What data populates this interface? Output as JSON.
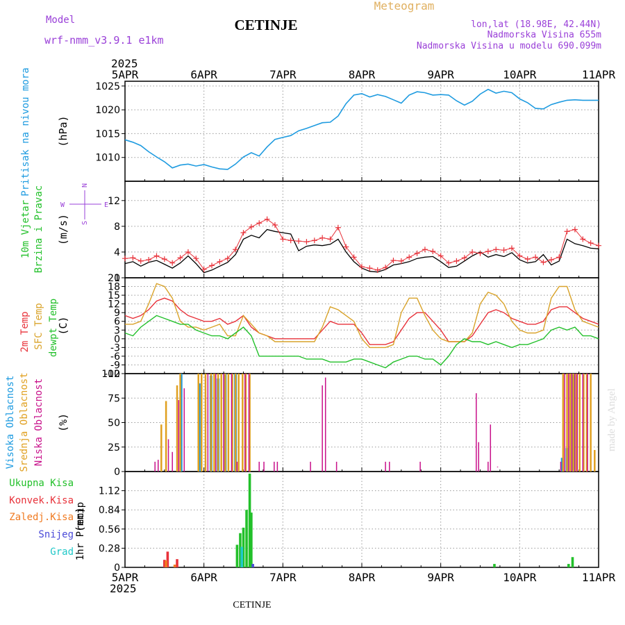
{
  "header": {
    "model_label": "Model",
    "model_name": "wrf-nmm_v3.9.1 e1km",
    "station": "CETINJE",
    "product": "Meteogram",
    "coords": "lon,lat (18.98E, 42.44N)",
    "elevation": "Nadmorska Visina 655m",
    "model_elevation": "Nadmorska Visina u modelu 690.099m",
    "year": "2025",
    "footer_station": "CETINJE",
    "credit": "made by Angel"
  },
  "colors": {
    "pressure": "#1e9be0",
    "temp2m": "#e8323a",
    "sfc": "#d9a32a",
    "dewpt": "#22c02a",
    "high_cloud": "#1e9be0",
    "mid_cloud": "#e0a020",
    "low_cloud": "#c8108a",
    "total_precip": "#22c02a",
    "conv_precip": "#e8323a",
    "frozen": "#f07a20",
    "snow": "#4a4ad8",
    "graupel": "#20c8c8",
    "wind_speed": "#000000",
    "wind_gust": "#e8323a",
    "violet": "#9a40d8",
    "meteogram": "#e0b060"
  },
  "chart_data": [
    {
      "type": "line",
      "name": "pressure",
      "ylabel": "Pritisak na nivou mora",
      "unit": "(hPa)",
      "ylim": [
        1005,
        1026
      ],
      "yticks": [
        1010,
        1015,
        1020,
        1025
      ],
      "x_days": [
        0,
        0.1,
        0.2,
        0.3,
        0.4,
        0.5,
        0.6,
        0.7,
        0.8,
        0.9,
        1.0,
        1.1,
        1.2,
        1.3,
        1.4,
        1.5,
        1.6,
        1.7,
        1.8,
        1.9,
        2.0,
        2.1,
        2.2,
        2.3,
        2.4,
        2.5,
        2.6,
        2.7,
        2.8,
        2.9,
        3.0,
        3.1,
        3.2,
        3.3,
        3.4,
        3.5,
        3.6,
        3.7,
        3.8,
        3.9,
        4.0,
        4.1,
        4.2,
        4.3,
        4.4,
        4.5,
        4.6,
        4.7,
        4.8,
        4.9,
        5.0,
        5.1,
        5.2,
        5.3,
        5.4,
        5.5,
        5.6,
        5.7,
        5.8,
        5.9,
        6.0
      ],
      "values": [
        1013.7,
        1013.2,
        1012.5,
        1011.2,
        1010.1,
        1009.1,
        1007.8,
        1008.4,
        1008.6,
        1008.2,
        1008.5,
        1008.0,
        1007.6,
        1007.5,
        1008.6,
        1010.1,
        1011.0,
        1010.3,
        1012.2,
        1013.8,
        1014.2,
        1014.6,
        1015.6,
        1016.1,
        1016.7,
        1017.3,
        1017.4,
        1018.7,
        1021.3,
        1023.1,
        1023.4,
        1022.7,
        1023.2,
        1022.8,
        1022.1,
        1021.4,
        1023.1,
        1023.8,
        1023.6,
        1023.1,
        1023.2,
        1023.1,
        1021.9,
        1021.0,
        1021.8,
        1023.3,
        1024.3,
        1023.5,
        1023.9,
        1023.6,
        1022.3,
        1021.5,
        1020.3,
        1020.2,
        1021.1,
        1021.6,
        1022.0,
        1022.1,
        1022.0,
        1022.0,
        1022.0
      ]
    },
    {
      "type": "line",
      "name": "wind",
      "ylabel": "10m Vjetar",
      "ylabel2": "Brzina i Pravac",
      "unit": "(m/s)",
      "ylim": [
        0,
        15
      ],
      "yticks": [
        0,
        4,
        8,
        12
      ],
      "compass": {
        "n": "N",
        "e": "E",
        "w": "W",
        "s": "S"
      },
      "x_days": [
        0,
        0.1,
        0.2,
        0.3,
        0.4,
        0.5,
        0.6,
        0.7,
        0.8,
        0.9,
        1.0,
        1.1,
        1.2,
        1.3,
        1.4,
        1.5,
        1.6,
        1.7,
        1.8,
        1.9,
        2.0,
        2.1,
        2.2,
        2.3,
        2.4,
        2.5,
        2.6,
        2.7,
        2.8,
        2.9,
        3.0,
        3.1,
        3.2,
        3.3,
        3.4,
        3.5,
        3.6,
        3.7,
        3.8,
        3.9,
        4.0,
        4.1,
        4.2,
        4.3,
        4.4,
        4.5,
        4.6,
        4.7,
        4.8,
        4.9,
        5.0,
        5.1,
        5.2,
        5.3,
        5.4,
        5.5,
        5.6,
        5.7,
        5.8,
        5.9,
        6.0
      ],
      "series": [
        {
          "name": "speed",
          "values": [
            2.2,
            2.5,
            1.8,
            2.4,
            2.7,
            2.1,
            1.5,
            2.3,
            3.4,
            2.2,
            0.8,
            1.2,
            1.8,
            2.4,
            3.6,
            6.0,
            6.6,
            6.2,
            7.5,
            7.2,
            7.0,
            6.8,
            4.2,
            4.9,
            5.1,
            5.0,
            5.2,
            6.0,
            4.0,
            2.5,
            1.5,
            1.0,
            0.9,
            1.3,
            2.0,
            2.2,
            2.5,
            3.0,
            3.2,
            3.3,
            2.5,
            1.6,
            1.8,
            2.6,
            3.4,
            4.0,
            3.2,
            3.6,
            3.3,
            3.9,
            2.8,
            2.3,
            2.5,
            3.6,
            2.0,
            2.6,
            6.0,
            5.3,
            5.0,
            4.6,
            4.5
          ]
        },
        {
          "name": "gust",
          "values": [
            3.0,
            3.1,
            2.6,
            2.8,
            3.4,
            2.9,
            2.3,
            3.1,
            4.0,
            3.0,
            1.3,
            1.9,
            2.5,
            3.0,
            4.4,
            7.0,
            7.9,
            8.5,
            9.1,
            8.2,
            6.0,
            5.8,
            5.7,
            5.6,
            5.8,
            6.2,
            6.0,
            7.8,
            4.8,
            3.2,
            1.7,
            1.5,
            1.2,
            1.6,
            2.7,
            2.6,
            3.2,
            3.8,
            4.4,
            4.1,
            3.4,
            2.3,
            2.6,
            3.1,
            4.0,
            3.8,
            4.1,
            4.4,
            4.3,
            4.6,
            3.4,
            2.9,
            3.2,
            2.4,
            2.8,
            3.2,
            7.2,
            7.5,
            6.0,
            5.4,
            5.0
          ]
        }
      ]
    },
    {
      "type": "line",
      "name": "temperature",
      "ylabel": "2m Temp",
      "ylabel2": "SFC Temp",
      "ylabel3": "dewpt Temp",
      "unit": "(C)",
      "ylim": [
        -12,
        21
      ],
      "yticks": [
        -12,
        -9,
        -6,
        -3,
        0,
        3,
        6,
        9,
        12,
        15,
        18,
        21
      ],
      "x_days": [
        0,
        0.1,
        0.2,
        0.3,
        0.4,
        0.5,
        0.6,
        0.7,
        0.8,
        0.9,
        1.0,
        1.1,
        1.2,
        1.3,
        1.4,
        1.5,
        1.6,
        1.7,
        1.8,
        1.9,
        2.0,
        2.1,
        2.2,
        2.3,
        2.4,
        2.5,
        2.6,
        2.7,
        2.8,
        2.9,
        3.0,
        3.1,
        3.2,
        3.3,
        3.4,
        3.5,
        3.6,
        3.7,
        3.8,
        3.9,
        4.0,
        4.1,
        4.2,
        4.3,
        4.4,
        4.5,
        4.6,
        4.7,
        4.8,
        4.9,
        5.0,
        5.1,
        5.2,
        5.3,
        5.4,
        5.5,
        5.6,
        5.7,
        5.8,
        5.9,
        6.0
      ],
      "series": [
        {
          "name": "2m Temp",
          "values": [
            8,
            7,
            8,
            10,
            13,
            14,
            13,
            10,
            8,
            7,
            6,
            6,
            7,
            5,
            6,
            8,
            4,
            2,
            1,
            0,
            0,
            0,
            0,
            0,
            0,
            3,
            6,
            5,
            5,
            5,
            2,
            -2,
            -2,
            -2,
            -1,
            3,
            7,
            9,
            9,
            6,
            3,
            -1,
            -1,
            -1,
            1,
            5,
            9,
            10,
            9,
            7,
            6,
            5,
            5,
            6,
            10,
            11,
            11,
            9,
            7,
            6,
            5
          ]
        },
        {
          "name": "SFC Temp",
          "values": [
            5,
            5,
            6,
            12,
            19,
            18,
            14,
            6,
            4,
            4,
            3,
            4,
            5,
            1,
            1,
            8,
            5,
            2,
            1,
            -1,
            -1,
            -1,
            -1,
            -1,
            -1,
            4,
            11,
            10,
            8,
            6,
            0,
            -3,
            -3,
            -3,
            -2,
            9,
            14,
            14,
            8,
            3,
            0,
            -1,
            -1,
            -1,
            2,
            12,
            16,
            15,
            12,
            6,
            3,
            2,
            2,
            3,
            14,
            18,
            18,
            10,
            6,
            5,
            4
          ]
        },
        {
          "name": "dewpt Temp",
          "values": [
            2,
            1,
            4,
            6,
            8,
            7,
            6,
            5,
            5,
            3,
            2,
            1,
            1,
            0,
            2,
            4,
            1,
            -6,
            -6,
            -6,
            -6,
            -6,
            -6,
            -7,
            -7,
            -7,
            -8,
            -8,
            -8,
            -7,
            -7,
            -8,
            -9,
            -10,
            -8,
            -7,
            -6,
            -6,
            -7,
            -7,
            -9,
            -6,
            -2,
            0,
            -1,
            -1,
            -2,
            -1,
            -2,
            -3,
            -2,
            -2,
            -1,
            0,
            3,
            4,
            3,
            4,
            1,
            1,
            0
          ]
        }
      ]
    },
    {
      "type": "bar",
      "name": "cloud",
      "ylabel": "Visoka Oblacnost",
      "ylabel2": "Srednja Oblacnost",
      "ylabel3": "Niska Oblacnost",
      "unit": "(%)",
      "ylim": [
        0,
        100
      ],
      "yticks": [
        0,
        25,
        50,
        75,
        100
      ],
      "series": [
        {
          "name": "Visoka Oblacnost",
          "x_days": [
            0.71,
            0.94,
            1.09,
            1.18,
            1.27,
            1.4,
            5.54,
            5.6,
            5.68
          ],
          "values": [
            100,
            90,
            98,
            95,
            100,
            100,
            14,
            24,
            100
          ]
        },
        {
          "name": "Srednja Oblacnost",
          "x_days": [
            0.46,
            0.52,
            0.66,
            0.7,
            0.93,
            0.97,
            1.02,
            1.09,
            1.13,
            1.18,
            1.22,
            1.27,
            1.31,
            1.36,
            1.4,
            1.44,
            1.49,
            1.53,
            1.58,
            5.55,
            5.6,
            5.64,
            5.68,
            5.72,
            5.76,
            5.81,
            5.85,
            5.9,
            5.95
          ],
          "values": [
            48,
            72,
            88,
            100,
            100,
            100,
            100,
            100,
            100,
            100,
            100,
            100,
            100,
            100,
            100,
            100,
            100,
            100,
            100,
            100,
            100,
            100,
            100,
            100,
            100,
            100,
            100,
            100,
            22
          ]
        },
        {
          "name": "Niska Oblacnost",
          "x_days": [
            0.38,
            0.42,
            0.55,
            0.6,
            0.68,
            0.75,
            1.05,
            1.15,
            1.25,
            1.35,
            1.42,
            1.52,
            1.57,
            1.7,
            1.76,
            1.89,
            1.93,
            2.35,
            2.5,
            2.54,
            2.68,
            3.3,
            3.35,
            3.74,
            4.45,
            4.48,
            4.6,
            4.63,
            4.72,
            5.52,
            5.57,
            5.62,
            5.66,
            5.7,
            5.73,
            5.8,
            5.86
          ],
          "values": [
            10,
            12,
            33,
            20,
            73,
            85,
            100,
            100,
            100,
            100,
            10,
            100,
            100,
            10,
            10,
            10,
            10,
            10,
            88,
            96,
            10,
            10,
            10,
            10,
            80,
            30,
            10,
            48,
            5,
            10,
            100,
            100,
            100,
            100,
            100,
            100,
            100
          ]
        }
      ]
    },
    {
      "type": "bar",
      "name": "precip",
      "ylabel": "1hr Precip",
      "unit": "(mm)",
      "ylim": [
        0,
        1.4
      ],
      "yticks": [
        0,
        0.28,
        0.56,
        0.84,
        1.12
      ],
      "yticklabels": [
        "0",
        "0.28",
        "0.56",
        "0.84",
        "1.12"
      ],
      "legend": [
        "Ukupna Kisa",
        "Konvek.Kisa",
        "Zaledj.Kisa",
        "Snijeg",
        "Grad"
      ],
      "series": [
        {
          "name": "Ukupna Kisa",
          "x_days": [
            1.42,
            1.46,
            1.5,
            1.54,
            1.58,
            1.6,
            4.68,
            5.62,
            5.67
          ],
          "values": [
            0.33,
            0.5,
            0.58,
            0.84,
            1.37,
            0.8,
            0.05,
            0.05,
            0.15
          ]
        },
        {
          "name": "Konvek.Kisa",
          "x_days": [
            0.5,
            0.54,
            0.66
          ],
          "values": [
            0.11,
            0.23,
            0.12
          ]
        },
        {
          "name": "Zaledj.Kisa",
          "x_days": [
            0.52,
            0.63
          ],
          "values": [
            0.1,
            0.04
          ]
        },
        {
          "name": "Snijeg",
          "x_days": [
            1.62
          ],
          "values": [
            0.05
          ]
        },
        {
          "name": "Grad",
          "x_days": [
            1.48
          ],
          "values": [
            0.3
          ]
        }
      ]
    }
  ],
  "x_axis": {
    "range_days": [
      0,
      6
    ],
    "ticks": [
      "5APR",
      "6APR",
      "7APR",
      "8APR",
      "9APR",
      "10APR",
      "11APR"
    ]
  }
}
